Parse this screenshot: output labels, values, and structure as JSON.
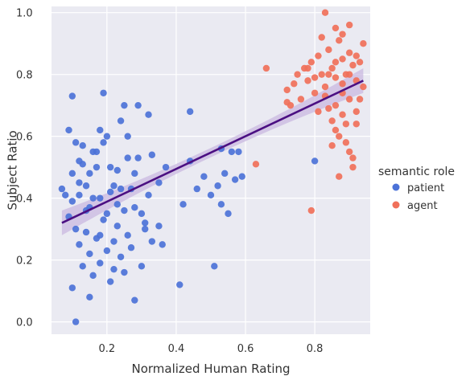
{
  "chart_data": {
    "type": "scatter",
    "xlabel": "Normalized Human Rating",
    "ylabel": "Subject Ratio",
    "xlim": [
      0.04,
      0.96
    ],
    "ylim": [
      -0.04,
      1.02
    ],
    "xticks": [
      "0.2",
      "0.4",
      "0.6",
      "0.8"
    ],
    "xtick_values": [
      0.2,
      0.4,
      0.6,
      0.8
    ],
    "yticks": [
      "0.0",
      "0.2",
      "0.4",
      "0.6",
      "0.8",
      "1.0"
    ],
    "ytick_values": [
      0.0,
      0.2,
      0.4,
      0.6,
      0.8,
      1.0
    ],
    "grid": true,
    "background": "#eaeaf2",
    "legend": {
      "title": "semantic role",
      "placement": "right",
      "entries": [
        "patient",
        "agent"
      ]
    },
    "series": [
      {
        "name": "patient",
        "color": "#4c72d8",
        "points": [
          [
            0.07,
            0.43
          ],
          [
            0.08,
            0.41
          ],
          [
            0.09,
            0.62
          ],
          [
            0.1,
            0.73
          ],
          [
            0.1,
            0.39
          ],
          [
            0.11,
            0.58
          ],
          [
            0.12,
            0.52
          ],
          [
            0.12,
            0.45
          ],
          [
            0.13,
            0.51
          ],
          [
            0.14,
            0.36
          ],
          [
            0.15,
            0.48
          ],
          [
            0.16,
            0.4
          ],
          [
            0.17,
            0.55
          ],
          [
            0.18,
            0.62
          ],
          [
            0.19,
            0.74
          ],
          [
            0.2,
            0.6
          ],
          [
            0.21,
            0.5
          ],
          [
            0.22,
            0.44
          ],
          [
            0.23,
            0.38
          ],
          [
            0.24,
            0.65
          ],
          [
            0.25,
            0.7
          ],
          [
            0.26,
            0.53
          ],
          [
            0.27,
            0.43
          ],
          [
            0.28,
            0.48
          ],
          [
            0.29,
            0.7
          ],
          [
            0.3,
            0.35
          ],
          [
            0.32,
            0.67
          ],
          [
            0.33,
            0.54
          ],
          [
            0.35,
            0.45
          ],
          [
            0.37,
            0.5
          ],
          [
            0.11,
            0.3
          ],
          [
            0.12,
            0.25
          ],
          [
            0.13,
            0.18
          ],
          [
            0.14,
            0.29
          ],
          [
            0.15,
            0.22
          ],
          [
            0.16,
            0.15
          ],
          [
            0.17,
            0.27
          ],
          [
            0.18,
            0.19
          ],
          [
            0.19,
            0.33
          ],
          [
            0.2,
            0.23
          ],
          [
            0.21,
            0.13
          ],
          [
            0.22,
            0.26
          ],
          [
            0.23,
            0.31
          ],
          [
            0.24,
            0.21
          ],
          [
            0.25,
            0.16
          ],
          [
            0.26,
            0.28
          ],
          [
            0.27,
            0.24
          ],
          [
            0.28,
            0.07
          ],
          [
            0.3,
            0.18
          ],
          [
            0.31,
            0.32
          ],
          [
            0.33,
            0.26
          ],
          [
            0.35,
            0.31
          ],
          [
            0.1,
            0.11
          ],
          [
            0.15,
            0.08
          ],
          [
            0.11,
            0.0
          ],
          [
            0.41,
            0.12
          ],
          [
            0.42,
            0.38
          ],
          [
            0.44,
            0.52
          ],
          [
            0.44,
            0.68
          ],
          [
            0.46,
            0.43
          ],
          [
            0.48,
            0.47
          ],
          [
            0.5,
            0.41
          ],
          [
            0.52,
            0.44
          ],
          [
            0.53,
            0.56
          ],
          [
            0.54,
            0.48
          ],
          [
            0.56,
            0.55
          ],
          [
            0.57,
            0.46
          ],
          [
            0.58,
            0.55
          ],
          [
            0.59,
            0.47
          ],
          [
            0.53,
            0.38
          ],
          [
            0.51,
            0.18
          ],
          [
            0.55,
            0.35
          ],
          [
            0.8,
            0.52
          ],
          [
            0.1,
            0.48
          ],
          [
            0.14,
            0.44
          ],
          [
            0.16,
            0.55
          ],
          [
            0.18,
            0.4
          ],
          [
            0.2,
            0.35
          ],
          [
            0.24,
            0.43
          ],
          [
            0.26,
            0.6
          ],
          [
            0.28,
            0.37
          ],
          [
            0.31,
            0.3
          ],
          [
            0.32,
            0.41
          ],
          [
            0.36,
            0.25
          ],
          [
            0.13,
            0.57
          ],
          [
            0.17,
            0.5
          ],
          [
            0.19,
            0.58
          ],
          [
            0.21,
            0.42
          ],
          [
            0.23,
            0.49
          ],
          [
            0.29,
            0.53
          ],
          [
            0.09,
            0.34
          ],
          [
            0.12,
            0.41
          ],
          [
            0.15,
            0.37
          ],
          [
            0.18,
            0.28
          ],
          [
            0.22,
            0.17
          ],
          [
            0.25,
            0.36
          ]
        ]
      },
      {
        "name": "agent",
        "color": "#f0705a",
        "points": [
          [
            0.72,
            0.75
          ],
          [
            0.73,
            0.7
          ],
          [
            0.74,
            0.77
          ],
          [
            0.75,
            0.8
          ],
          [
            0.76,
            0.72
          ],
          [
            0.77,
            0.82
          ],
          [
            0.78,
            0.78
          ],
          [
            0.79,
            0.84
          ],
          [
            0.8,
            0.74
          ],
          [
            0.81,
            0.86
          ],
          [
            0.82,
            0.8
          ],
          [
            0.83,
            0.76
          ],
          [
            0.84,
            0.88
          ],
          [
            0.85,
            0.82
          ],
          [
            0.86,
            0.79
          ],
          [
            0.87,
            0.91
          ],
          [
            0.88,
            0.85
          ],
          [
            0.89,
            0.8
          ],
          [
            0.9,
            0.87
          ],
          [
            0.91,
            0.83
          ],
          [
            0.92,
            0.78
          ],
          [
            0.93,
            0.84
          ],
          [
            0.94,
            0.9
          ],
          [
            0.83,
            1.0
          ],
          [
            0.86,
            0.95
          ],
          [
            0.88,
            0.93
          ],
          [
            0.9,
            0.96
          ],
          [
            0.82,
            0.92
          ],
          [
            0.84,
            0.69
          ],
          [
            0.85,
            0.65
          ],
          [
            0.86,
            0.62
          ],
          [
            0.87,
            0.6
          ],
          [
            0.88,
            0.67
          ],
          [
            0.89,
            0.58
          ],
          [
            0.9,
            0.55
          ],
          [
            0.91,
            0.53
          ],
          [
            0.92,
            0.64
          ],
          [
            0.93,
            0.72
          ],
          [
            0.85,
            0.57
          ],
          [
            0.87,
            0.47
          ],
          [
            0.91,
            0.5
          ],
          [
            0.79,
            0.36
          ],
          [
            0.66,
            0.82
          ],
          [
            0.63,
            0.51
          ],
          [
            0.72,
            0.71
          ],
          [
            0.78,
            0.82
          ],
          [
            0.8,
            0.79
          ],
          [
            0.83,
            0.73
          ],
          [
            0.86,
            0.7
          ],
          [
            0.88,
            0.74
          ],
          [
            0.9,
            0.72
          ],
          [
            0.92,
            0.68
          ],
          [
            0.94,
            0.76
          ],
          [
            0.84,
            0.8
          ],
          [
            0.86,
            0.84
          ],
          [
            0.88,
            0.77
          ],
          [
            0.9,
            0.8
          ],
          [
            0.92,
            0.86
          ],
          [
            0.81,
            0.68
          ],
          [
            0.89,
            0.64
          ]
        ]
      }
    ],
    "regression": {
      "color": "#4b0f82",
      "band_color": "#c9b8e0",
      "x": [
        0.07,
        0.94
      ],
      "y": [
        0.32,
        0.78
      ],
      "band_halfwidth_ends": 0.04,
      "band_halfwidth_center": 0.015
    }
  }
}
